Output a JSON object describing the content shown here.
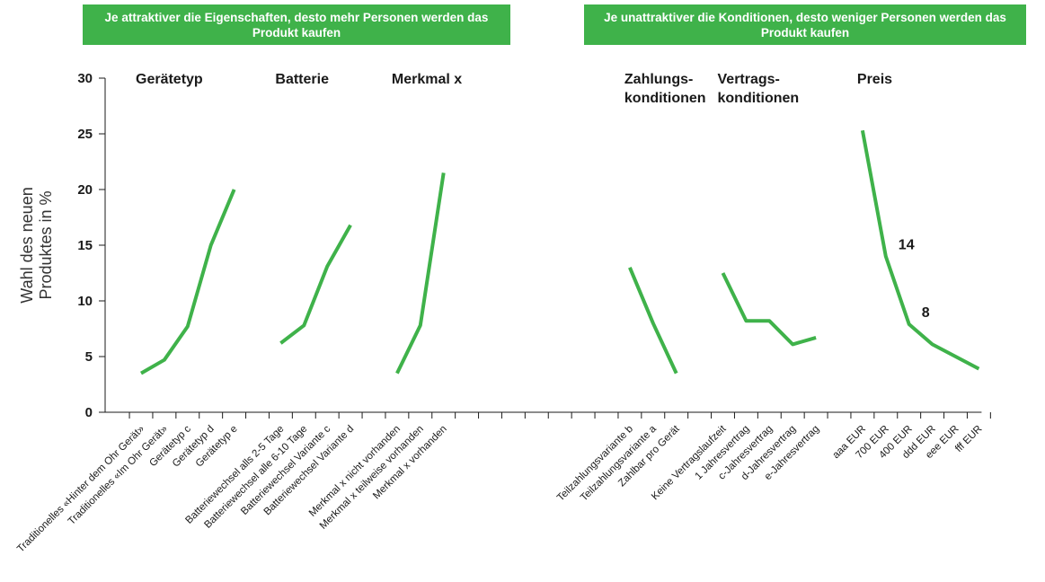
{
  "banners": {
    "left": "Je attraktiver die Eigenschaften, desto mehr Personen werden das Produkt kaufen",
    "right": "Je unattraktiver die Konditionen, desto weniger Personen werden das Produkt kaufen"
  },
  "colors": {
    "accent": "#3fb24a",
    "axis": "#1a1a1a"
  },
  "chart_data": {
    "type": "line",
    "ylabel": [
      "Wahl des neuen",
      "Produktes in %"
    ],
    "ylim": [
      0,
      30
    ],
    "yticks": [
      0,
      5,
      10,
      15,
      20,
      25,
      30
    ],
    "categories": [
      "Traditionelles «Hinter dem Ohr Gerät»",
      "Traditionelles «Im Ohr Gerät»",
      "Gerätetyp c",
      "Gerätetyp d",
      "Gerätetyp e",
      "",
      "Batteriewechsel alls 2-5 Tage",
      "Batteriewechsel alle 6-10 Tage",
      "Batteriewechsel Variante c",
      "Batteriewechsel Variante d",
      "",
      "Merkmal x nicht vorhanden",
      "Merkmal x teilweise vorhanden",
      "Merkmal x vorhanden",
      "",
      "",
      "",
      "",
      "",
      "",
      "",
      "Teilzahlungsvariante b",
      "Teilzahlungsvariante a",
      "Zahlbar pro Gerät",
      "",
      "Keine Vertragslaufzeit",
      "1 Jahresvertrag",
      "c-Jahresvertrag",
      "d-Jahresvertrag",
      "e-Jahresvertrag",
      "",
      "aaa EUR",
      "700 EUR",
      "400 EUR",
      "ddd EUR",
      "eee EUR",
      "fff EUR"
    ],
    "groups": [
      {
        "title": [
          "Gerätetyp"
        ],
        "start": 0,
        "values": [
          3.5,
          4.7,
          7.7,
          15.0,
          20.0
        ]
      },
      {
        "title": [
          "Batterie"
        ],
        "start": 6,
        "values": [
          6.2,
          7.8,
          13.1,
          16.8
        ]
      },
      {
        "title": [
          "Merkmal x"
        ],
        "start": 11,
        "values": [
          3.5,
          7.8,
          21.5
        ]
      },
      {
        "title": [
          "Zahlungs-",
          "konditionen"
        ],
        "start": 21,
        "values": [
          13.0,
          8.0,
          3.5
        ]
      },
      {
        "title": [
          "Vertrags-",
          "konditionen"
        ],
        "start": 25,
        "values": [
          12.5,
          8.2,
          8.2,
          6.1,
          6.7
        ]
      },
      {
        "title": [
          "Preis"
        ],
        "start": 31,
        "values": [
          25.3,
          14.0,
          7.9,
          6.1,
          5.0,
          3.9
        ]
      }
    ],
    "data_labels": [
      {
        "text": "14",
        "category": 32,
        "value": 14.0
      },
      {
        "text": "8",
        "category": 33,
        "value": 7.9
      }
    ]
  }
}
